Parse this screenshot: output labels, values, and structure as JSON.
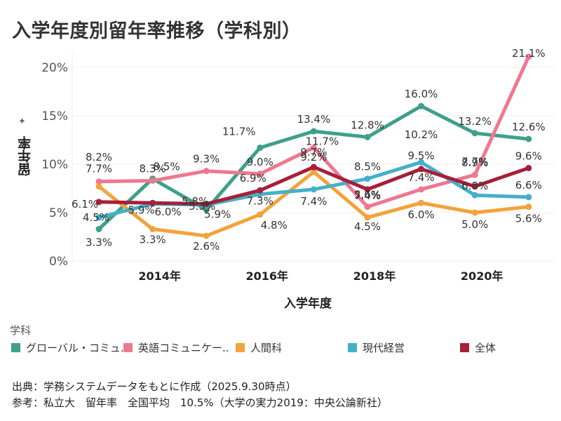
{
  "title": "入学年度別留年率推移（学科別）",
  "chart_data": {
    "type": "line",
    "title": "入学年度別留年率推移（学科別）",
    "xlabel": "入学年度",
    "ylabel": "留年率",
    "x": [
      2013,
      2014,
      2015,
      2016,
      2017,
      2018,
      2019,
      2020,
      2021
    ],
    "x_ticks": [
      2014,
      2016,
      2018,
      2020
    ],
    "x_tick_labels": [
      "2014年",
      "2016年",
      "2018年",
      "2020年"
    ],
    "ylim": [
      0,
      22
    ],
    "y_ticks": [
      0,
      5,
      10,
      15,
      20
    ],
    "y_tick_labels": [
      "0%",
      "5%",
      "10%",
      "15%",
      "20%"
    ],
    "grid": true,
    "legend_title": "学科",
    "legend_position": "bottom",
    "series": [
      {
        "name": "グローバル・コミュ..",
        "color": "#3fa08a",
        "values": [
          3.3,
          8.5,
          5.3,
          11.7,
          13.4,
          12.8,
          16.0,
          13.2,
          12.6
        ]
      },
      {
        "name": "英語コミュニケー..",
        "color": "#ef7790",
        "values": [
          8.2,
          8.3,
          9.3,
          9.0,
          11.7,
          5.6,
          7.4,
          8.9,
          21.1
        ]
      },
      {
        "name": "人間科",
        "color": "#f2a33a",
        "values": [
          7.7,
          3.3,
          2.6,
          4.8,
          9.2,
          4.5,
          6.0,
          5.0,
          5.6
        ]
      },
      {
        "name": "現代経営",
        "color": "#45b0c9",
        "values": [
          4.5,
          5.9,
          5.8,
          6.9,
          7.4,
          8.5,
          10.2,
          6.8,
          6.6
        ]
      },
      {
        "name": "全体",
        "color": "#a71f3a",
        "values": [
          6.1,
          6.0,
          5.9,
          7.3,
          9.7,
          7.4,
          9.5,
          7.7,
          9.6
        ]
      }
    ]
  },
  "footer": {
    "source": "出典：学務システムデータをもとに作成（2025.9.30時点）",
    "reference": "参考：私立大　留年率　全国平均　10.5%（大学の実力2019：中央公論新社）"
  }
}
